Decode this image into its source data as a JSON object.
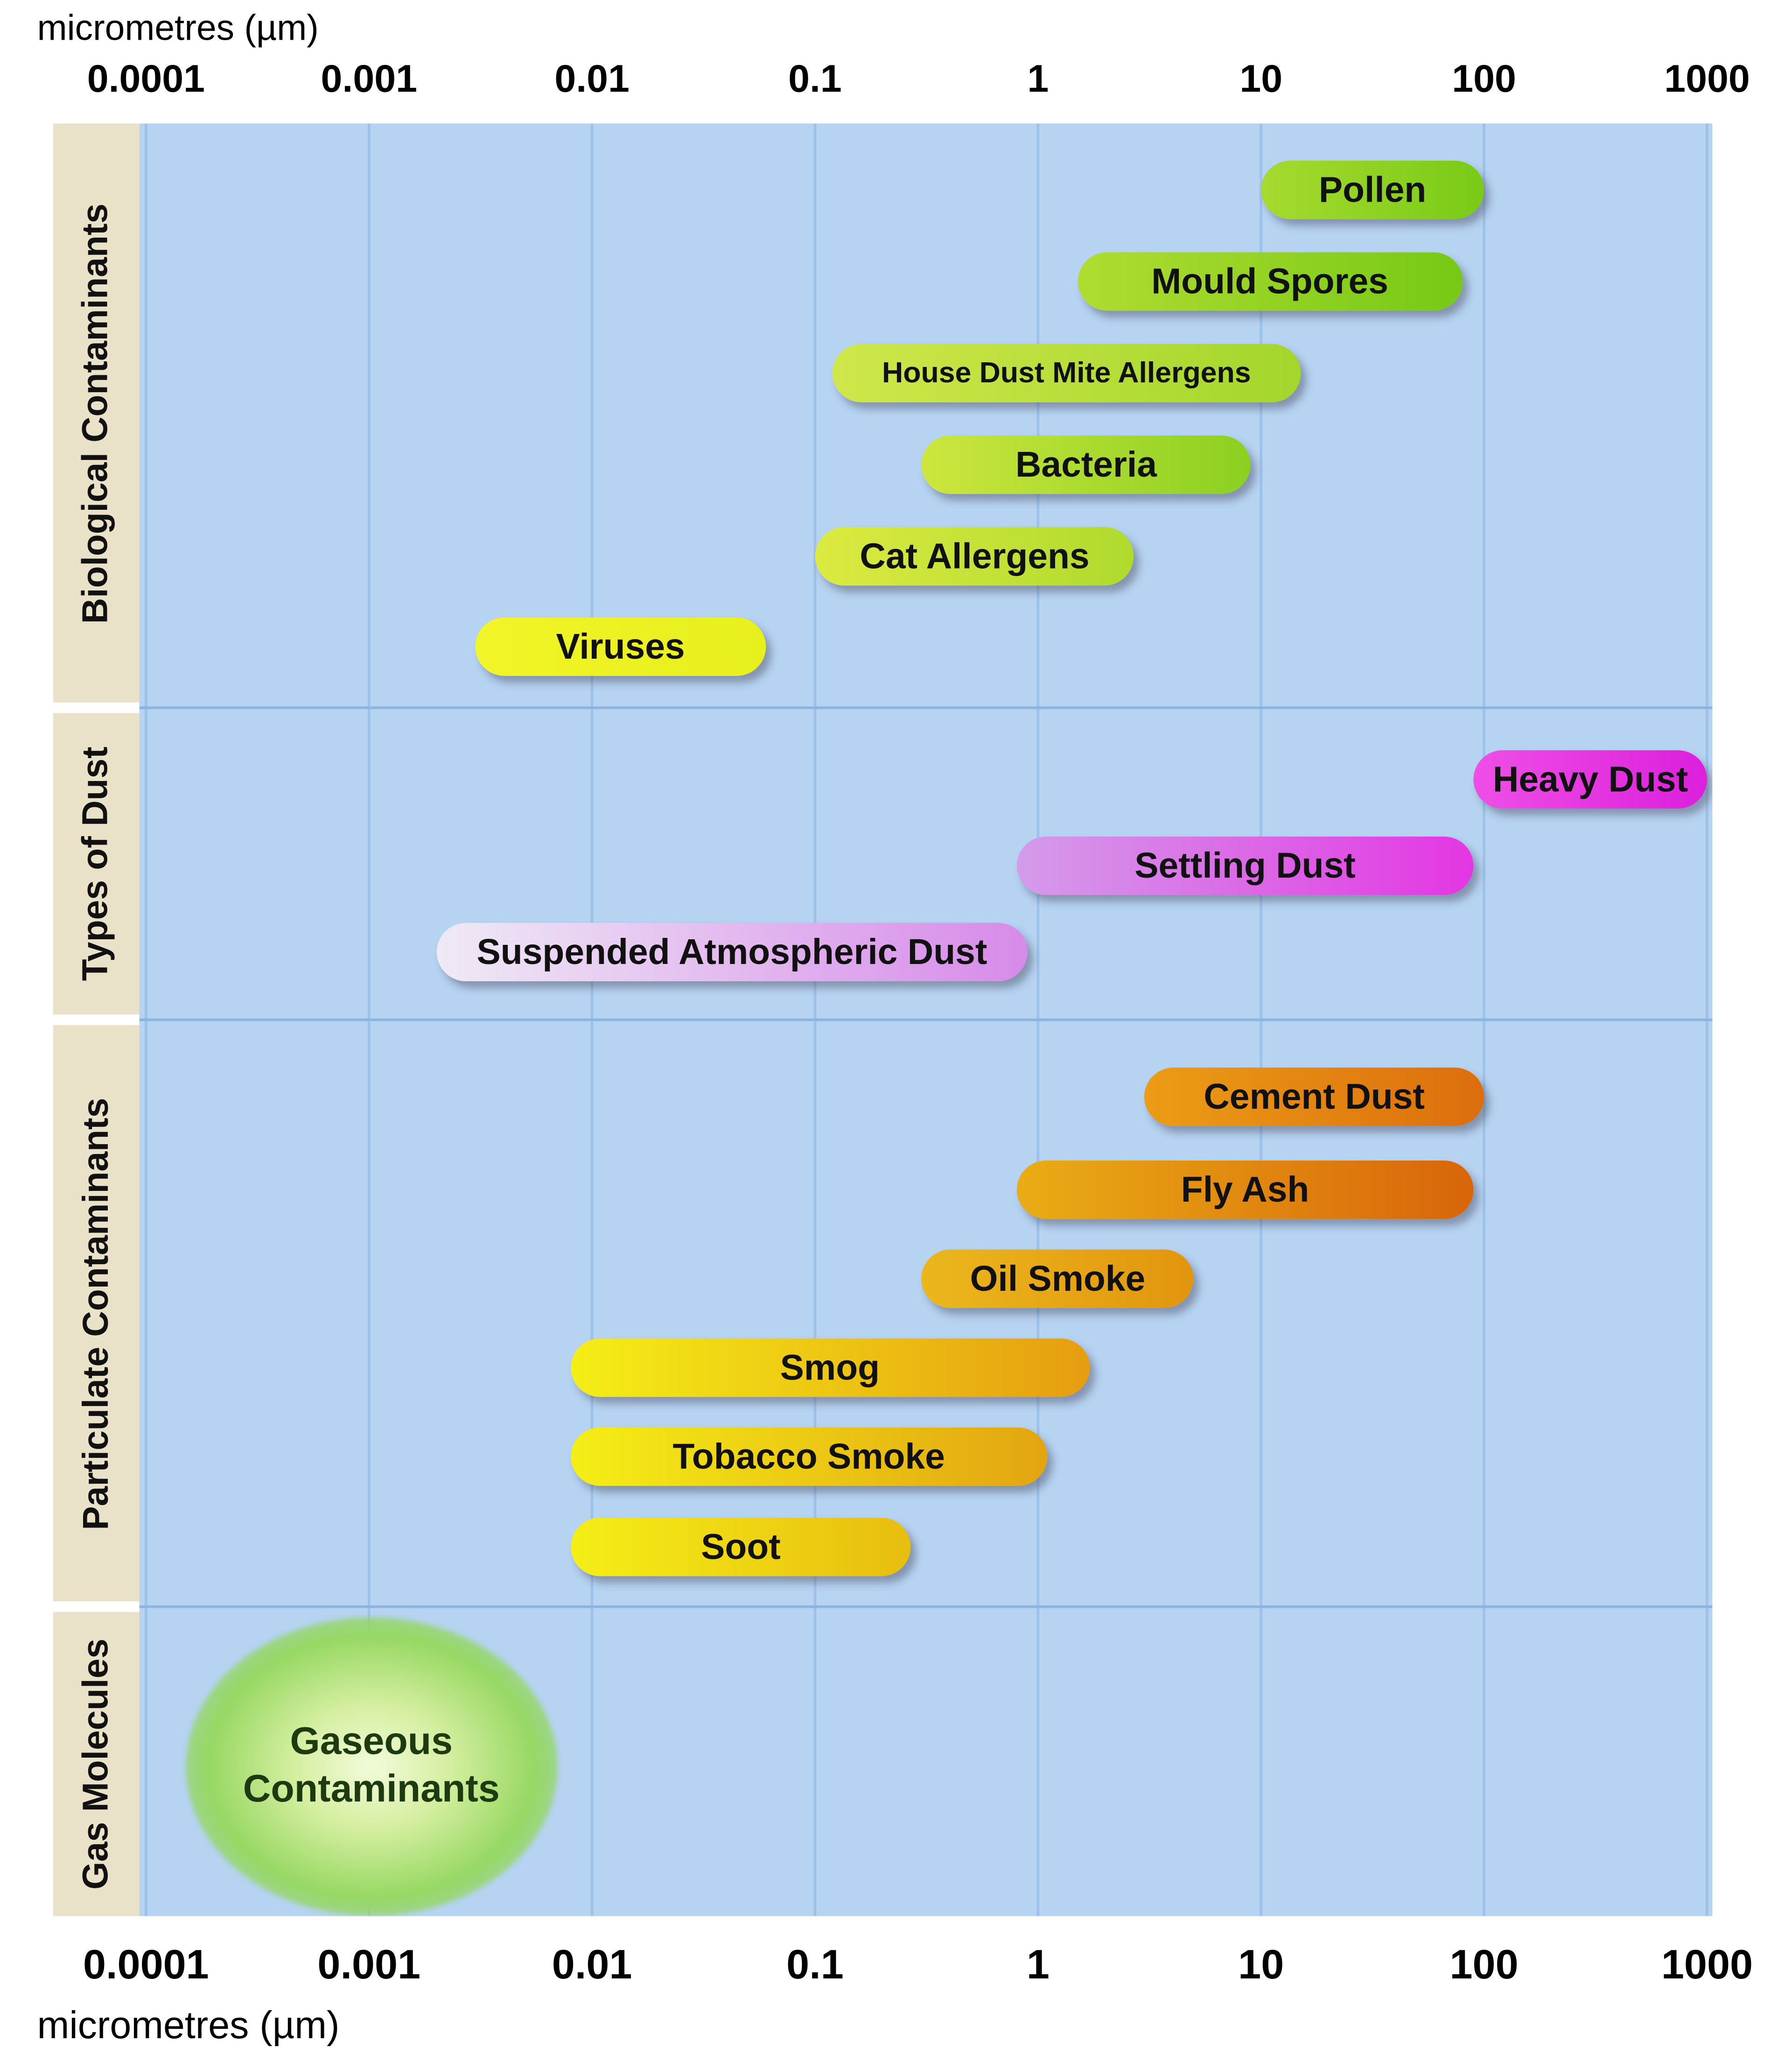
{
  "chart_data": {
    "type": "bar",
    "subtype": "horizontal-log-range-chart",
    "x_axis": {
      "label_top": "micrometres (µm)",
      "label_bottom": "micrometres (µm)",
      "scale": "log",
      "xlim": [
        0.0001,
        1000
      ],
      "ticks": [
        0.0001,
        0.001,
        0.01,
        0.1,
        1,
        10,
        100,
        1000
      ],
      "tick_labels": [
        "0.0001",
        "0.001",
        "0.01",
        "0.1",
        "1",
        "10",
        "100",
        "1000"
      ],
      "grid": true
    },
    "categories": [
      "Biological Contaminants",
      "Types of Dust",
      "Particulate Contaminants",
      "Gas Molecules"
    ],
    "series": [
      {
        "label": "Pollen",
        "category": "Biological Contaminants",
        "min_um": 10,
        "max_um": 100,
        "color_start": "#a6da2e",
        "color_end": "#79ca17"
      },
      {
        "label": "Mould Spores",
        "category": "Biological Contaminants",
        "min_um": 1.5,
        "max_um": 80,
        "color_start": "#b0dc31",
        "color_end": "#76c916"
      },
      {
        "label": "House Dust Mite Allergens",
        "category": "Biological Contaminants",
        "min_um": 0.12,
        "max_um": 15,
        "color_start": "#cfe74a",
        "color_end": "#a3d62c"
      },
      {
        "label": "Bacteria",
        "category": "Biological Contaminants",
        "min_um": 0.3,
        "max_um": 9,
        "color_start": "#cde63e",
        "color_end": "#8bd021"
      },
      {
        "label": "Cat Allergens",
        "category": "Biological Contaminants",
        "min_um": 0.1,
        "max_um": 2.7,
        "color_start": "#dcea41",
        "color_end": "#b0da2e"
      },
      {
        "label": "Viruses",
        "category": "Biological Contaminants",
        "min_um": 0.003,
        "max_um": 0.06,
        "color_start": "#f2f527",
        "color_end": "#e7ef1d"
      },
      {
        "label": "Heavy Dust",
        "category": "Types of Dust",
        "min_um": 90,
        "max_um": 1000,
        "color_start": "#ee4fe6",
        "color_end": "#dc1fdc"
      },
      {
        "label": "Settling Dust",
        "category": "Types of Dust",
        "min_um": 0.8,
        "max_um": 90,
        "color_start": "#d49cea",
        "color_end": "#e336e3"
      },
      {
        "label": "Suspended Atmospheric Dust",
        "category": "Types of Dust",
        "min_um": 0.002,
        "max_um": 0.9,
        "color_start": "#efeaf5",
        "color_end": "#d78ae9"
      },
      {
        "label": "Cement Dust",
        "category": "Particulate Contaminants",
        "min_um": 3,
        "max_um": 100,
        "color_start": "#ec9c16",
        "color_end": "#dc6e0d"
      },
      {
        "label": "Fly Ash",
        "category": "Particulate Contaminants",
        "min_um": 0.8,
        "max_um": 90,
        "color_start": "#eaac15",
        "color_end": "#d8650a"
      },
      {
        "label": "Oil Smoke",
        "category": "Particulate Contaminants",
        "min_um": 0.3,
        "max_um": 5,
        "color_start": "#ebb71d",
        "color_end": "#e2950e"
      },
      {
        "label": "Smog",
        "category": "Particulate Contaminants",
        "min_um": 0.008,
        "max_um": 1.7,
        "color_start": "#f5ee16",
        "color_end": "#e69d10"
      },
      {
        "label": "Tobacco Smoke",
        "category": "Particulate Contaminants",
        "min_um": 0.008,
        "max_um": 1.1,
        "color_start": "#f5ee16",
        "color_end": "#e3a511"
      },
      {
        "label": "Soot",
        "category": "Particulate Contaminants",
        "min_um": 0.008,
        "max_um": 0.27,
        "color_start": "#f5ee16",
        "color_end": "#e8bd0f"
      }
    ],
    "gas_blob": {
      "label": "Gaseous Contaminants",
      "label_lines": [
        "Gaseous",
        "Contaminants"
      ],
      "category": "Gas Molecules",
      "min_um": 0.00015,
      "max_um": 0.007,
      "color_center": "#f2fbda",
      "color_mid": "#97d863"
    },
    "colors": {
      "plot_background": "#b6d3f2",
      "gridline": "#9cc2e8",
      "row_separator": "#8cb4e0",
      "category_strip": "#e9e2c9",
      "page_background": "#ffffff",
      "bar_text": "#111111"
    }
  }
}
